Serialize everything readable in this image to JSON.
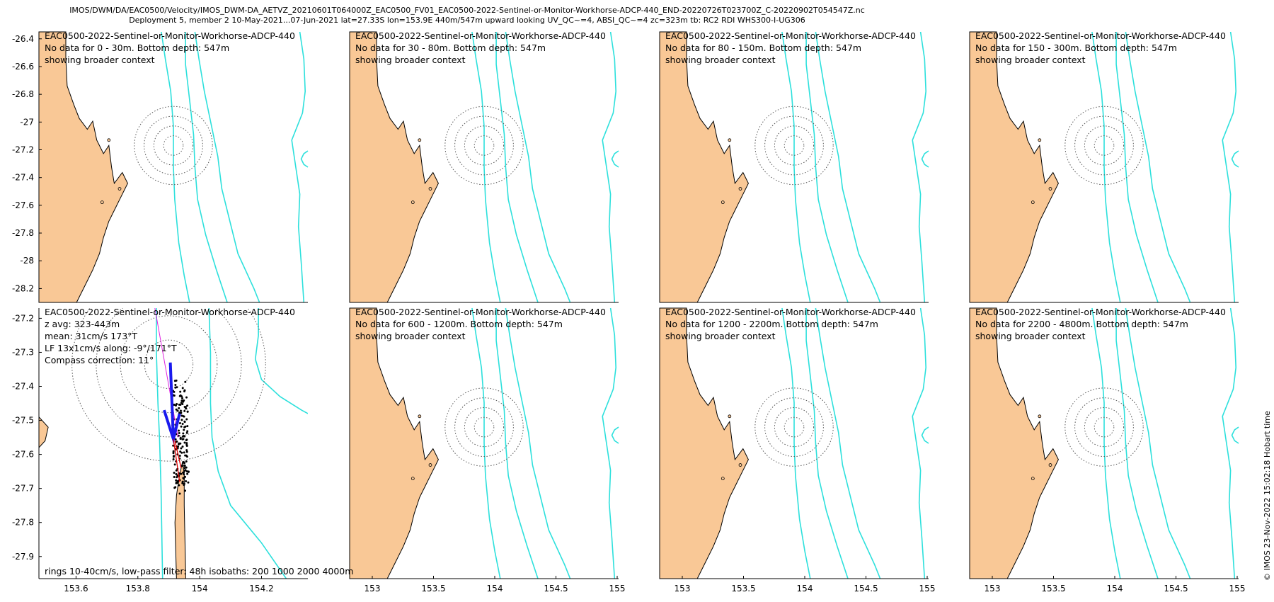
{
  "figure": {
    "title_line1": "IMOS/DWM/DA/EAC0500/Velocity/IMOS_DWM-DA_AETVZ_20210601T064000Z_EAC0500_FV01_EAC0500-2022-Sentinel-or-Monitor-Workhorse-ADCP-440_END-20220726T023700Z_C-20220902T054547Z.nc",
    "title_line2": "Deployment 5, member 2 10-May-2021...07-Jun-2021 lat=27.33S lon=153.9E 440m/547m upward looking UV_QC~=4, ABSI_QC~=4 zc=323m tb: RC2 RDI WHS300-I-UG306",
    "credit": "© IMOS 23-Nov-2022 15:02:18 Hobart time",
    "colors": {
      "land": "#f9c896",
      "isobath": "#2de0dc",
      "rings": "#555555",
      "mean_arrow": "#1a1aee",
      "lf_arrow": "#dd0000",
      "track": "#e020e0",
      "points": "#000000"
    }
  },
  "chart_data": [
    {
      "type": "scatter",
      "panel": "top-1",
      "ylim": [
        -28.3,
        -26.35
      ],
      "yticks": [
        "-26.4",
        "-26.6",
        "-26.8",
        "-27",
        "-27.2",
        "-27.4",
        "-27.6",
        "-27.8",
        "-28",
        "-28.2"
      ],
      "annotation": [
        "EAC0500-2022-Sentinel-or-Monitor-Workhorse-ADCP-440",
        "No data for 0 - 30m. Bottom depth: 547m",
        "showing broader context"
      ]
    },
    {
      "type": "scatter",
      "panel": "top-2",
      "annotation": [
        "EAC0500-2022-Sentinel-or-Monitor-Workhorse-ADCP-440",
        "No data for 30 - 80m. Bottom depth: 547m",
        "showing broader context"
      ]
    },
    {
      "type": "scatter",
      "panel": "top-3",
      "annotation": [
        "EAC0500-2022-Sentinel-or-Monitor-Workhorse-ADCP-440",
        "No data for 80 - 150m. Bottom depth: 547m",
        "showing broader context"
      ]
    },
    {
      "type": "scatter",
      "panel": "top-4",
      "annotation": [
        "EAC0500-2022-Sentinel-or-Monitor-Workhorse-ADCP-440",
        "No data for 150 - 300m. Bottom depth: 547m",
        "showing broader context"
      ]
    },
    {
      "type": "scatter",
      "panel": "bottom-1",
      "xlim": [
        153.48,
        154.35
      ],
      "ylim": [
        -27.965,
        -27.17
      ],
      "xticks": [
        "153.6",
        "153.8",
        "154",
        "154.2"
      ],
      "yticks": [
        "-27.2",
        "-27.3",
        "-27.4",
        "-27.5",
        "-27.6",
        "-27.7",
        "-27.8",
        "-27.9"
      ],
      "annotation": [
        "EAC0500-2022-Sentinel-or-Monitor-Workhorse-ADCP-440",
        "z avg: 323-443m",
        "mean: 31cm/s 173°T",
        "LF 13x1cm/s along: -9°/171°T",
        "Compass correction: 11°"
      ],
      "footer": "rings 10-40cm/s, low-pass filter: 48h isobaths: 200 1000 2000 4000m",
      "mooring": {
        "lon": 153.9,
        "lat": -27.335
      },
      "rings_cm_s": [
        10,
        20,
        30,
        40
      ],
      "mean_speed_cm_s": 31,
      "mean_dir_degT": 173
    },
    {
      "type": "scatter",
      "panel": "bottom-2",
      "annotation": [
        "EAC0500-2022-Sentinel-or-Monitor-Workhorse-ADCP-440",
        "No data for 600 - 1200m. Bottom depth: 547m",
        "showing broader context"
      ]
    },
    {
      "type": "scatter",
      "panel": "bottom-3",
      "annotation": [
        "EAC0500-2022-Sentinel-or-Monitor-Workhorse-ADCP-440",
        "No data for 1200 - 2200m. Bottom depth: 547m",
        "showing broader context"
      ]
    },
    {
      "type": "scatter",
      "panel": "bottom-4",
      "annotation": [
        "EAC0500-2022-Sentinel-or-Monitor-Workhorse-ADCP-440",
        "No data for 2200 - 4800m. Bottom depth: 547m",
        "showing broader context"
      ]
    }
  ],
  "context_xticks": [
    "153",
    "153.5",
    "154",
    "154.5",
    "155"
  ]
}
